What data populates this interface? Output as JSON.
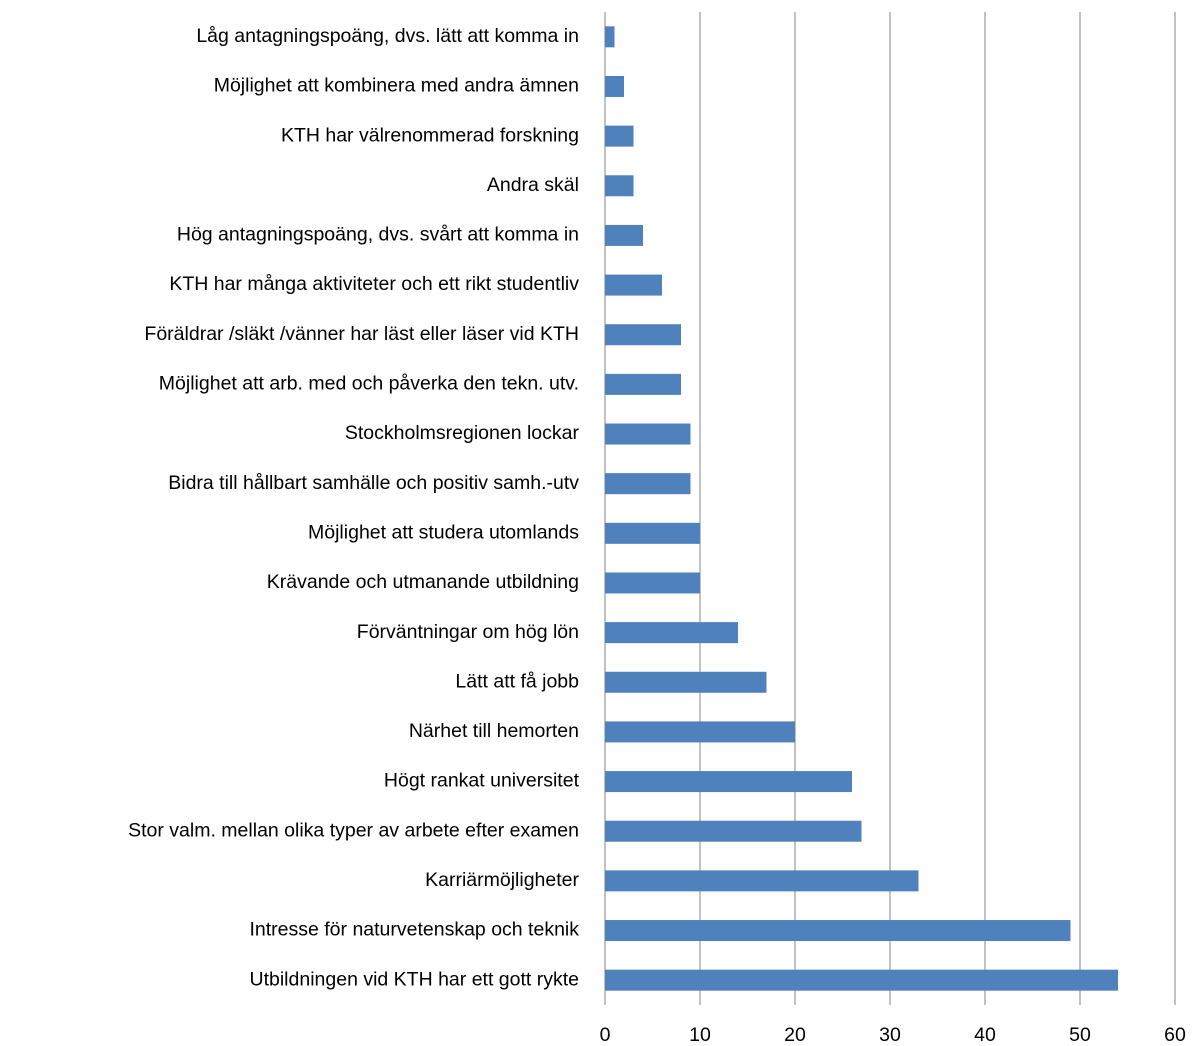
{
  "chart_data": {
    "type": "bar",
    "orientation": "horizontal",
    "categories": [
      "Låg antagningspoäng, dvs. lätt att komma in",
      "Möjlighet att kombinera med andra ämnen",
      "KTH har välrenommerad forskning",
      "Andra skäl",
      "Hög antagningspoäng, dvs. svårt att komma in",
      "KTH har många aktiviteter och ett rikt studentliv",
      "Föräldrar /släkt /vänner har läst eller läser vid KTH",
      "Möjlighet att arb. med och påverka den tekn. utv.",
      "Stockholmsregionen lockar",
      "Bidra till hållbart samhälle och positiv samh.-utv",
      "Möjlighet att studera utomlands",
      "Krävande och utmanande utbildning",
      "Förväntningar om hög lön",
      "Lätt att få jobb",
      "Närhet till hemorten",
      "Högt rankat universitet",
      "Stor valm. mellan olika typer av arbete efter examen",
      "Karriärmöjligheter",
      "Intresse för naturvetenskap och teknik",
      "Utbildningen vid KTH har ett gott rykte"
    ],
    "values": [
      1,
      2,
      3,
      3,
      4,
      6,
      8,
      8,
      9,
      9,
      10,
      10,
      14,
      17,
      20,
      26,
      27,
      33,
      49,
      54
    ],
    "color": "#4f81bd",
    "xlim": [
      0,
      60
    ],
    "xticks": [
      0,
      10,
      20,
      30,
      40,
      50,
      60
    ],
    "grid": true
  }
}
